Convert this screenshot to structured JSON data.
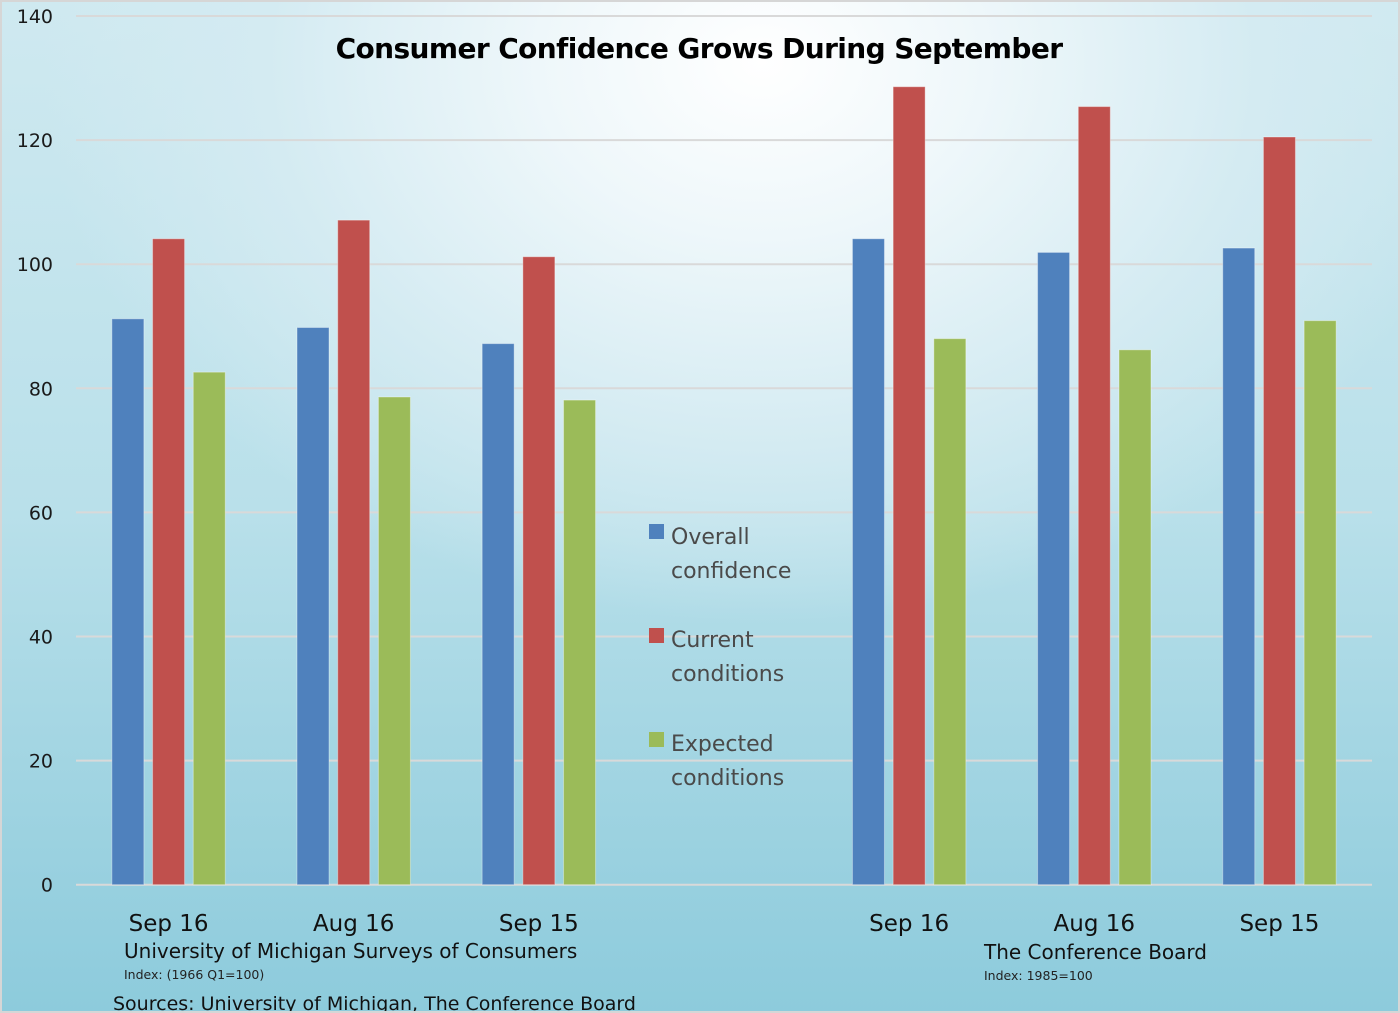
{
  "chart_data": {
    "type": "bar",
    "title": "Consumer Confidence Grows During September",
    "xlabel": "",
    "ylabel": "",
    "ylim": [
      0,
      140
    ],
    "yticks": [
      0,
      20,
      40,
      60,
      80,
      100,
      120,
      140
    ],
    "grid": true,
    "legend_position": "center",
    "categories": [
      "Sep 16",
      "Aug 16",
      "Sep 15",
      "",
      "Sep 16",
      "Aug 16",
      "Sep 15"
    ],
    "series": [
      {
        "name": "Overall confidence",
        "color": "#4f81bd",
        "values": [
          91.2,
          89.8,
          87.2,
          null,
          104.1,
          101.9,
          102.6
        ]
      },
      {
        "name": "Current conditions",
        "color": "#c0504d",
        "values": [
          104.1,
          107.1,
          101.2,
          null,
          128.6,
          125.4,
          120.5
        ]
      },
      {
        "name": "Expected conditions",
        "color": "#9bbb59",
        "values": [
          82.6,
          78.6,
          78.1,
          null,
          88.0,
          86.2,
          90.9
        ]
      }
    ],
    "legend": [
      {
        "line1": "Overall",
        "line2": "confidence",
        "color": "#4f81bd"
      },
      {
        "line1": "Current",
        "line2": "conditions",
        "color": "#c0504d"
      },
      {
        "line1": "Expected",
        "line2": "conditions",
        "color": "#9bbb59"
      }
    ],
    "group_labels": [
      {
        "name": "University of Michigan Surveys of Consumers",
        "note": "Index: (1966 Q1=100)"
      },
      {
        "name": "The Conference Board",
        "note": "Index: 1985=100"
      }
    ],
    "source": "Sources: University of Michigan, The Conference Board"
  }
}
